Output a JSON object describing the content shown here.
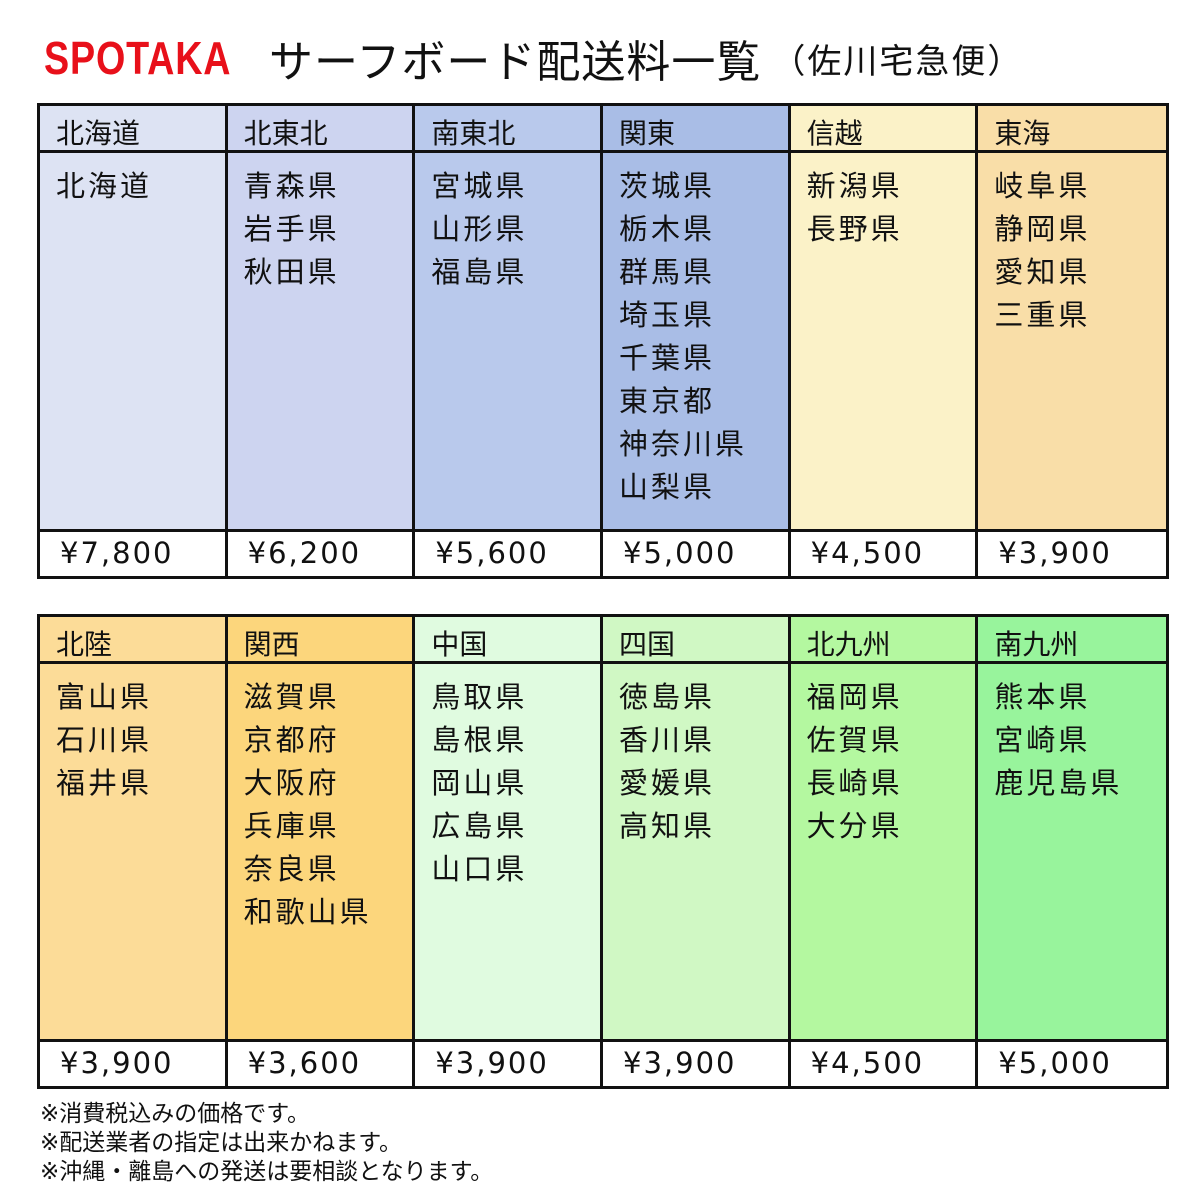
{
  "header": {
    "logo": "SPOTAKA",
    "title": "サーフボード配送料一覧",
    "subtitle": "（佐川宅急便）",
    "logo_color": "#e8101a"
  },
  "table1": [
    {
      "region": "北海道",
      "prefs": [
        "北海道"
      ],
      "price": "¥7,800",
      "color": "#dde3f3"
    },
    {
      "region": "北東北",
      "prefs": [
        "青森県",
        "岩手県",
        "秋田県"
      ],
      "price": "¥6,200",
      "color": "#cdd4f0"
    },
    {
      "region": "南東北",
      "prefs": [
        "宮城県",
        "山形県",
        "福島県"
      ],
      "price": "¥5,600",
      "color": "#b9c9ec"
    },
    {
      "region": "関東",
      "prefs": [
        "茨城県",
        "栃木県",
        "群馬県",
        "埼玉県",
        "千葉県",
        "東京都",
        "神奈川県",
        "山梨県"
      ],
      "price": "¥5,000",
      "color": "#a9bde6"
    },
    {
      "region": "信越",
      "prefs": [
        "新潟県",
        "長野県"
      ],
      "price": "¥4,500",
      "color": "#fbf2c8"
    },
    {
      "region": "東海",
      "prefs": [
        "岐阜県",
        "静岡県",
        "愛知県",
        "三重県"
      ],
      "price": "¥3,900",
      "color": "#f9dea8"
    }
  ],
  "table2": [
    {
      "region": "北陸",
      "prefs": [
        "富山県",
        "石川県",
        "福井県"
      ],
      "price": "¥3,900",
      "color": "#fcdc98"
    },
    {
      "region": "関西",
      "prefs": [
        "滋賀県",
        "京都府",
        "大阪府",
        "兵庫県",
        "奈良県",
        "和歌山県"
      ],
      "price": "¥3,600",
      "color": "#fcd67c"
    },
    {
      "region": "中国",
      "prefs": [
        "鳥取県",
        "島根県",
        "岡山県",
        "広島県",
        "山口県"
      ],
      "price": "¥3,900",
      "color": "#e0fbe0"
    },
    {
      "region": "四国",
      "prefs": [
        "徳島県",
        "香川県",
        "愛媛県",
        "高知県"
      ],
      "price": "¥3,900",
      "color": "#d0f8c4"
    },
    {
      "region": "北九州",
      "prefs": [
        "福岡県",
        "佐賀県",
        "長崎県",
        "大分県"
      ],
      "price": "¥4,500",
      "color": "#b4f8a0"
    },
    {
      "region": "南九州",
      "prefs": [
        "熊本県",
        "宮崎県",
        "鹿児島県"
      ],
      "price": "¥5,000",
      "color": "#98f49c"
    }
  ],
  "notes": [
    "※消費税込みの価格です。",
    "※配送業者の指定は出来かねます。",
    "※沖縄・離島への発送は要相談となります。"
  ]
}
